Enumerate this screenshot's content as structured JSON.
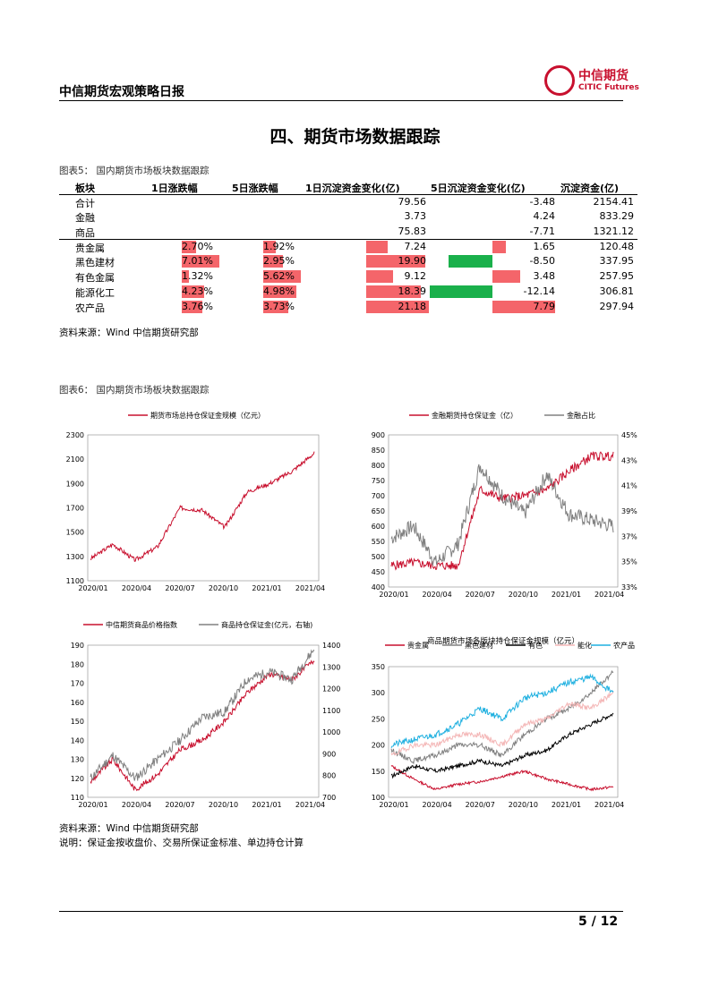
{
  "header": {
    "report_title": "中信期货宏观策略日报",
    "logo_cn": "中信期货",
    "logo_en": "CITIC Futures"
  },
  "section_title": "四、期货市场数据跟踪",
  "fig5": {
    "caption": "图表5：  国内期货市场板块数据跟踪",
    "columns": [
      "板块",
      "1日涨跌幅",
      "5日涨跌幅",
      "1日沉淀资金变化(亿)",
      "5日沉淀资金变化(亿)",
      "沉淀资金(亿)"
    ],
    "rows": [
      {
        "name": "合计",
        "d1": "",
        "d5": "",
        "f1": "79.56",
        "f5": "-3.48",
        "fund": "2154.41",
        "d1v": null,
        "d5v": null,
        "f1v": null,
        "f5v": null
      },
      {
        "name": "金融",
        "d1": "",
        "d5": "",
        "f1": "3.73",
        "f5": "4.24",
        "fund": "833.29",
        "d1v": null,
        "d5v": null,
        "f1v": null,
        "f5v": null
      },
      {
        "name": "商品",
        "d1": "",
        "d5": "",
        "f1": "75.83",
        "f5": "-7.71",
        "fund": "1321.12",
        "d1v": null,
        "d5v": null,
        "f1v": null,
        "f5v": null
      },
      {
        "name": "贵金属",
        "d1": "2.70%",
        "d5": "1.92%",
        "f1": "7.24",
        "f5": "1.65",
        "fund": "120.48",
        "d1v": 2.7,
        "d5v": 1.92,
        "f1v": 7.24,
        "f5v": 1.65
      },
      {
        "name": "黑色建材",
        "d1": "7.01%",
        "d5": "2.95%",
        "f1": "19.90",
        "f5": "-8.50",
        "fund": "337.95",
        "d1v": 7.01,
        "d5v": 2.95,
        "f1v": 19.9,
        "f5v": -8.5
      },
      {
        "name": "有色金属",
        "d1": "1.32%",
        "d5": "5.62%",
        "f1": "9.12",
        "f5": "3.48",
        "fund": "257.95",
        "d1v": 1.32,
        "d5v": 5.62,
        "f1v": 9.12,
        "f5v": 3.48
      },
      {
        "name": "能源化工",
        "d1": "4.23%",
        "d5": "4.98%",
        "f1": "18.39",
        "f5": "-12.14",
        "fund": "306.81",
        "d1v": 4.23,
        "d5v": 4.98,
        "f1v": 18.39,
        "f5v": -12.14
      },
      {
        "name": "农产品",
        "d1": "3.76%",
        "d5": "3.73%",
        "f1": "21.18",
        "f5": "7.79",
        "fund": "297.94",
        "d1v": 3.76,
        "d5v": 3.73,
        "f1v": 21.18,
        "f5v": 7.79
      }
    ]
  },
  "source1": "资料来源：Wind  中信期货研究部",
  "fig6": {
    "caption": "图表6：  国内期货市场板块数据跟踪"
  },
  "chart_data": [
    {
      "type": "line",
      "series": [
        {
          "name": "期货市场总持仓保证金规模（亿元）",
          "color": "#c8102e",
          "start": 1280,
          "end": 2150
        }
      ],
      "y": [
        1100,
        1300,
        1500,
        1700,
        1900,
        2100,
        2300
      ],
      "ylim": [
        1100,
        2300
      ],
      "xticks": [
        "2020/01",
        "2020/04",
        "2020/07",
        "2020/10",
        "2021/01",
        "2021/04"
      ]
    },
    {
      "type": "line",
      "series": [
        {
          "name": "金融期货持仓保证金（亿）",
          "color": "#c8102e"
        },
        {
          "name": "金融占比",
          "color": "#808080"
        }
      ],
      "y": [
        400,
        450,
        500,
        550,
        600,
        650,
        700,
        750,
        800,
        850,
        900
      ],
      "ylim": [
        400,
        900
      ],
      "y2": [
        "33%",
        "35%",
        "37%",
        "39%",
        "41%",
        "43%",
        "45%"
      ],
      "xticks": [
        "2020/01",
        "2020/04",
        "2020/07",
        "2020/10",
        "2021/01",
        "2021/04"
      ]
    },
    {
      "type": "line",
      "series": [
        {
          "name": "中信期货商品价格指数",
          "color": "#c8102e"
        },
        {
          "name": "商品持仓保证金(亿元，右轴)",
          "color": "#808080"
        }
      ],
      "y": [
        110,
        120,
        130,
        140,
        150,
        160,
        170,
        180,
        190
      ],
      "ylim": [
        110,
        190
      ],
      "y2": [
        700,
        800,
        900,
        1000,
        1100,
        1200,
        1300,
        1400
      ],
      "xticks": [
        "2020/01",
        "2020/04",
        "2020/07",
        "2020/10",
        "2021/01",
        "2021/04"
      ]
    },
    {
      "type": "line",
      "title": "商品期货市场各版块持仓保证金规模（亿元）",
      "series": [
        {
          "name": "贵金属",
          "color": "#c8102e"
        },
        {
          "name": "黑色建材",
          "color": "#808080"
        },
        {
          "name": "有色",
          "color": "#000000"
        },
        {
          "name": "能化",
          "color": "#f4b6b6"
        },
        {
          "name": "农产品",
          "color": "#1fb0e0"
        }
      ],
      "y": [
        100,
        150,
        200,
        250,
        300,
        350
      ],
      "ylim": [
        100,
        350
      ],
      "xticks": [
        "2020/01",
        "2020/04",
        "2020/07",
        "2020/10",
        "2021/01",
        "2021/04"
      ]
    }
  ],
  "source2": "资料来源：Wind  中信期货研究部",
  "note": "说明：保证金按收盘价、交易所保证金标准、单边持仓计算",
  "page": "5 / 12"
}
